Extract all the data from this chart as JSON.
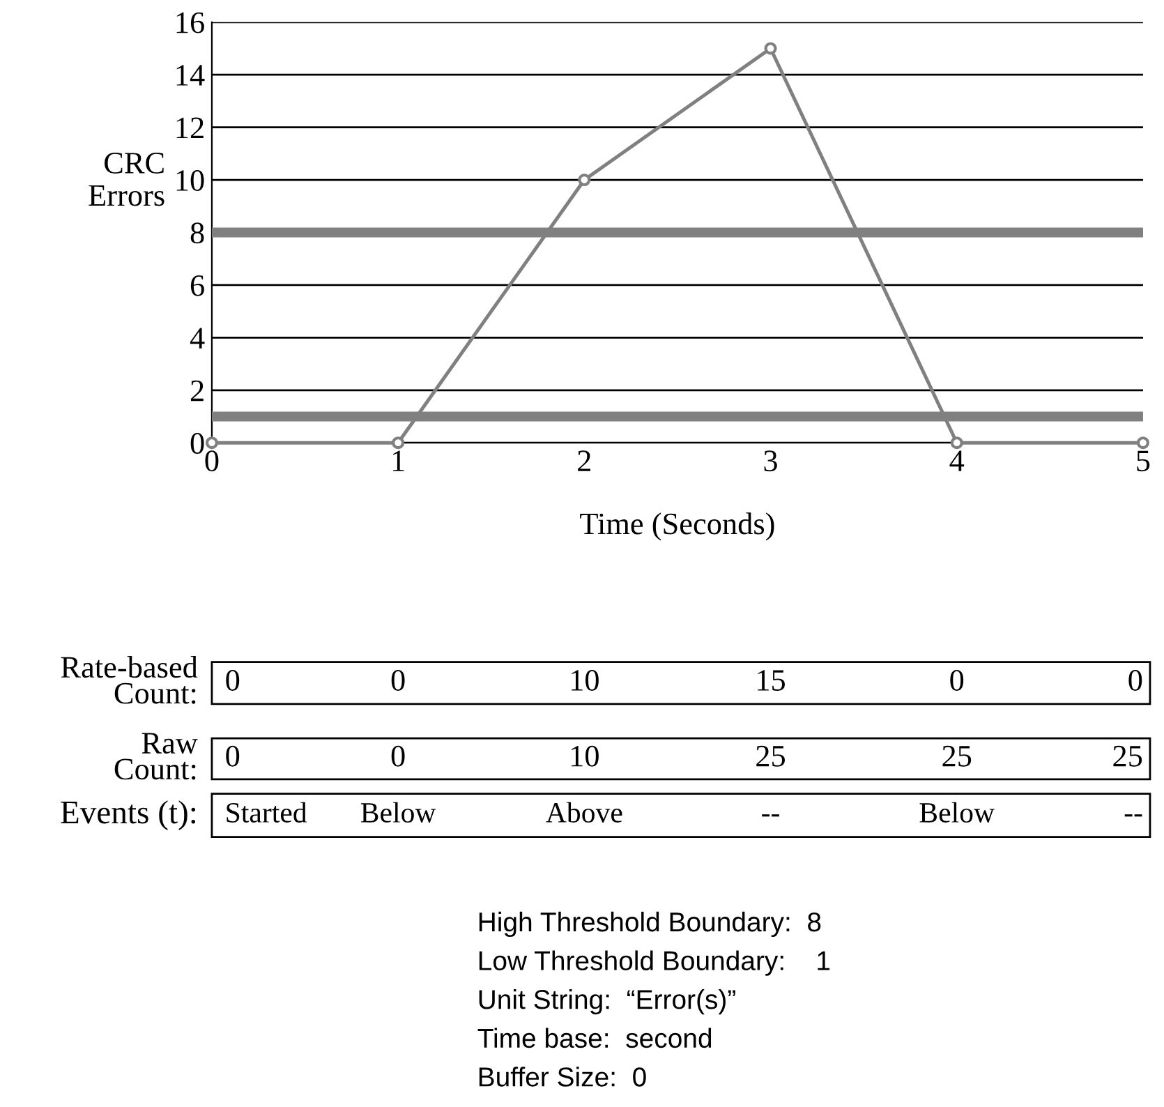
{
  "chart_data": {
    "type": "line",
    "xlabel": "Time (Seconds)",
    "ylabel": "CRC Errors",
    "x": [
      0,
      1,
      2,
      3,
      4,
      5
    ],
    "series": [
      {
        "color": "#808080",
        "values": [
          0,
          0,
          10,
          15,
          0,
          0
        ]
      }
    ],
    "xlim": [
      0,
      5
    ],
    "xticks": [
      0,
      1,
      2,
      3,
      4,
      5
    ],
    "ylim": [
      0,
      16
    ],
    "yticks": [
      0,
      2,
      4,
      6,
      8,
      10,
      12,
      14,
      16
    ],
    "grid": "y",
    "marker": "circle",
    "line_style": "solid",
    "ref_lines": [
      {
        "axis": "y",
        "value": 8,
        "color": "#808080"
      },
      {
        "axis": "y",
        "value": 1,
        "color": "#808080"
      }
    ],
    "annotations": [
      "Rate-based Count:",
      "Raw Count:",
      "Events (t):",
      "0",
      "0",
      "10",
      "15",
      "0",
      "0",
      "0",
      "0",
      "10",
      "25",
      "25",
      "25",
      "Started",
      "Below",
      "Above",
      "--",
      "Below",
      "--",
      "High Threshold Boundary:  8",
      "Low Threshold Boundary:    1",
      "Unit String:  “Error(s)”",
      "Time base:  second",
      "Buffer Size:  0"
    ]
  }
}
